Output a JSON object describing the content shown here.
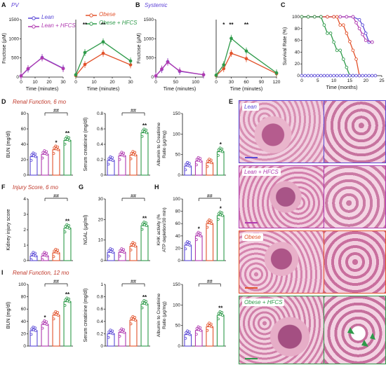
{
  "panels": {
    "A": {
      "letter": "A",
      "title": "PV"
    },
    "B": {
      "letter": "B",
      "title": "Systemic"
    },
    "C": {
      "letter": "C"
    },
    "D": {
      "letter": "D",
      "title": "Renal Function, 6 mo"
    },
    "E": {
      "letter": "E"
    },
    "F": {
      "letter": "F",
      "title": "Injury Score, 6 mo"
    },
    "G": {
      "letter": "G"
    },
    "H": {
      "letter": "H"
    },
    "I": {
      "letter": "I",
      "title": "Renal Function, 12 mo"
    }
  },
  "legend": {
    "lean": "Lean",
    "lean_hfcs": "Lean + HFCS",
    "obese": "Obese",
    "obese_hfcs": "Obese + HFCS"
  },
  "colors": {
    "lean": "#5a49d6",
    "lean_hfcs": "#b03ab0",
    "obese": "#e2522b",
    "obese_hfcs": "#2e9a4a"
  },
  "histology": {
    "lean": "Lean",
    "lean_hfcs": "Lean + HFCS",
    "obese": "Obese",
    "obese_hfcs": "Obese + HFCS"
  },
  "chart_data": [
    {
      "id": "A-left",
      "type": "line",
      "xlabel": "Time (minutes)",
      "ylabel": "Fructose (μM)",
      "xlim": [
        0,
        30
      ],
      "ylim": [
        0,
        1500
      ],
      "xticks": [
        0,
        10,
        20,
        30
      ],
      "yticks": [
        0,
        500,
        1000,
        1500
      ],
      "series": [
        {
          "name": "Lean",
          "color_key": "lean",
          "x": [
            0,
            5,
            15,
            30
          ],
          "y": [
            30,
            210,
            510,
            230
          ]
        },
        {
          "name": "Lean + HFCS",
          "color_key": "lean_hfcs",
          "x": [
            0,
            5,
            15,
            30
          ],
          "y": [
            30,
            220,
            500,
            220
          ]
        }
      ]
    },
    {
      "id": "A-right",
      "type": "line",
      "xlabel": "Time (minutes)",
      "xlim": [
        0,
        30
      ],
      "ylim": [
        0,
        1500
      ],
      "xticks": [
        0,
        10,
        20,
        30
      ],
      "annotations": [
        {
          "x": 5,
          "text": "**"
        },
        {
          "x": 15,
          "text": "**"
        }
      ],
      "series": [
        {
          "name": "Obese",
          "color_key": "obese",
          "x": [
            0,
            5,
            15,
            30
          ],
          "y": [
            40,
            330,
            620,
            320
          ]
        },
        {
          "name": "Obese + HFCS",
          "color_key": "obese_hfcs",
          "x": [
            0,
            5,
            15,
            30
          ],
          "y": [
            60,
            640,
            920,
            420
          ]
        }
      ]
    },
    {
      "id": "B-left",
      "type": "line",
      "xlabel": "Time (minutes)",
      "ylabel": "Fructose (μM)",
      "xlim": [
        0,
        120
      ],
      "ylim": [
        0,
        1500
      ],
      "xticks": [
        0,
        50,
        100
      ],
      "yticks": [
        0,
        500,
        1000,
        1500
      ],
      "series": [
        {
          "name": "Lean",
          "color_key": "lean",
          "x": [
            0,
            15,
            30,
            60,
            120
          ],
          "y": [
            30,
            200,
            400,
            150,
            60
          ]
        },
        {
          "name": "Lean + HFCS",
          "color_key": "lean_hfcs",
          "x": [
            0,
            15,
            30,
            60,
            120
          ],
          "y": [
            30,
            210,
            390,
            160,
            60
          ]
        }
      ]
    },
    {
      "id": "B-right",
      "type": "line",
      "xlabel": "Time (minutes)",
      "xlim": [
        0,
        120
      ],
      "ylim": [
        0,
        1500
      ],
      "xticks": [
        0,
        30,
        60,
        90,
        120
      ],
      "annotations": [
        {
          "x": 15,
          "text": "*"
        },
        {
          "x": 30,
          "text": "**"
        },
        {
          "x": 60,
          "text": "**"
        }
      ],
      "series": [
        {
          "name": "Obese",
          "color_key": "obese",
          "x": [
            0,
            15,
            30,
            60,
            120
          ],
          "y": [
            40,
            220,
            620,
            480,
            90
          ]
        },
        {
          "name": "Obese + HFCS",
          "color_key": "obese_hfcs",
          "x": [
            0,
            15,
            30,
            60,
            120
          ],
          "y": [
            50,
            320,
            1010,
            680,
            110
          ]
        }
      ]
    },
    {
      "id": "C",
      "type": "line",
      "xlabel": "Time (months)",
      "ylabel": "Survival Rate (%)",
      "xlim": [
        0,
        25
      ],
      "ylim": [
        0,
        100
      ],
      "xticks": [
        0,
        5,
        10,
        15,
        20,
        25
      ],
      "yticks": [
        0,
        20,
        40,
        60,
        80,
        100
      ],
      "series": [
        {
          "name": "Lean",
          "color_key": "lean",
          "x": [
            0,
            2,
            4,
            6,
            8,
            10,
            12,
            14,
            16,
            18,
            19,
            20,
            21,
            22
          ],
          "y": [
            100,
            100,
            100,
            100,
            100,
            100,
            100,
            100,
            100,
            95,
            86,
            72,
            57,
            57
          ]
        },
        {
          "name": "Lean + HFCS",
          "color_key": "lean_hfcs",
          "x": [
            0,
            2,
            4,
            6,
            8,
            10,
            12,
            14,
            16,
            17,
            18,
            19,
            20,
            22
          ],
          "y": [
            100,
            100,
            100,
            100,
            100,
            100,
            100,
            100,
            100,
            90,
            80,
            70,
            60,
            57
          ]
        },
        {
          "name": "Obese",
          "color_key": "obese",
          "x": [
            0,
            2,
            4,
            6,
            8,
            10,
            11,
            12,
            13,
            14,
            15,
            16,
            17,
            18
          ],
          "y": [
            100,
            100,
            100,
            100,
            100,
            100,
            100,
            86,
            86,
            72,
            58,
            43,
            28,
            0
          ]
        },
        {
          "name": "Obese + HFCS",
          "color_key": "obese_hfcs",
          "x": [
            0,
            2,
            4,
            6,
            7,
            8,
            9,
            10,
            11,
            12,
            13,
            14,
            15,
            16
          ],
          "y": [
            100,
            100,
            100,
            100,
            86,
            72,
            72,
            57,
            43,
            43,
            28,
            14,
            0,
            0
          ]
        },
        {
          "name": "baseline",
          "color_key": "lean",
          "x": [
            0,
            1,
            2,
            3,
            4,
            5,
            6,
            7,
            8,
            9,
            10,
            11,
            12,
            13,
            14,
            15,
            16,
            17,
            18,
            19,
            20,
            21,
            22,
            23
          ],
          "y": [
            0,
            0,
            0,
            0,
            0,
            0,
            0,
            0,
            0,
            0,
            0,
            0,
            0,
            0,
            0,
            0,
            0,
            0,
            0,
            0,
            0,
            0,
            0,
            0
          ]
        }
      ]
    },
    {
      "id": "D1",
      "type": "bar",
      "ylabel": "BUN (mg/dl)",
      "ylim": [
        0,
        80
      ],
      "yticks": [
        0,
        20,
        40,
        60,
        80
      ],
      "values": [
        24,
        27,
        33,
        45
      ],
      "bracket": "##",
      "stars": [
        "",
        "",
        "*",
        "**"
      ]
    },
    {
      "id": "D2",
      "type": "bar",
      "ylabel": "Serum creatinine (mg/dl)",
      "ylim": [
        0,
        0.8
      ],
      "yticks": [
        0.0,
        0.2,
        0.4,
        0.6,
        0.8
      ],
      "values": [
        0.19,
        0.25,
        0.26,
        0.55
      ],
      "bracket": "##",
      "stars": [
        "",
        "",
        "",
        "**"
      ]
    },
    {
      "id": "D3",
      "type": "bar",
      "ylabel": "Albumin to Creatinine Ratio (μg/mg)",
      "ylim": [
        0,
        150
      ],
      "yticks": [
        0,
        50,
        100,
        150
      ],
      "values": [
        22,
        34,
        30,
        57
      ],
      "stars": [
        "",
        "",
        "",
        "*"
      ]
    },
    {
      "id": "F",
      "type": "bar",
      "ylabel": "Kidney injury score",
      "ylim": [
        0,
        4
      ],
      "yticks": [
        0,
        1,
        2,
        3,
        4
      ],
      "values": [
        0.3,
        0.3,
        0.5,
        2.1
      ],
      "bracket": "##",
      "stars": [
        "",
        "",
        "",
        "**"
      ]
    },
    {
      "id": "G",
      "type": "bar",
      "ylabel": "NGAL (μg/ml)",
      "ylim": [
        0,
        30
      ],
      "yticks": [
        0,
        10,
        20,
        30
      ],
      "values": [
        4,
        4,
        7,
        17
      ],
      "bracket": "##",
      "stars": [
        "",
        "",
        "",
        "**"
      ]
    },
    {
      "id": "H",
      "type": "bar",
      "ylabel": "KHK activity (% ATP depletion/30 min)",
      "ylim": [
        0,
        100
      ],
      "yticks": [
        0,
        20,
        40,
        60,
        80,
        100
      ],
      "values": [
        25,
        40,
        60,
        73
      ],
      "bracket": "##",
      "stars": [
        "",
        "*",
        "",
        "*"
      ]
    },
    {
      "id": "I1",
      "type": "bar",
      "ylabel": "BUN (mg/dl)",
      "ylim": [
        0,
        100
      ],
      "yticks": [
        0,
        20,
        40,
        60,
        80,
        100
      ],
      "values": [
        25,
        35,
        50,
        72
      ],
      "bracket": "##",
      "stars": [
        "",
        "*",
        "",
        "**"
      ]
    },
    {
      "id": "I2",
      "type": "bar",
      "ylabel": "Serum creatinine (mg/dl)",
      "ylim": [
        0,
        1.0
      ],
      "yticks": [
        0.0,
        0.2,
        0.4,
        0.6,
        0.8,
        1.0
      ],
      "values": [
        0.2,
        0.22,
        0.42,
        0.68
      ],
      "bracket": "##",
      "stars": [
        "",
        "",
        "",
        "**"
      ]
    },
    {
      "id": "I3",
      "type": "bar",
      "ylabel": "Albumin to Creatinine Ratio (μg/mg)",
      "ylim": [
        0,
        150
      ],
      "yticks": [
        0,
        50,
        100,
        150
      ],
      "values": [
        28,
        38,
        47,
        75
      ],
      "bracket": "##",
      "stars": [
        "",
        "",
        "",
        "**"
      ]
    }
  ]
}
